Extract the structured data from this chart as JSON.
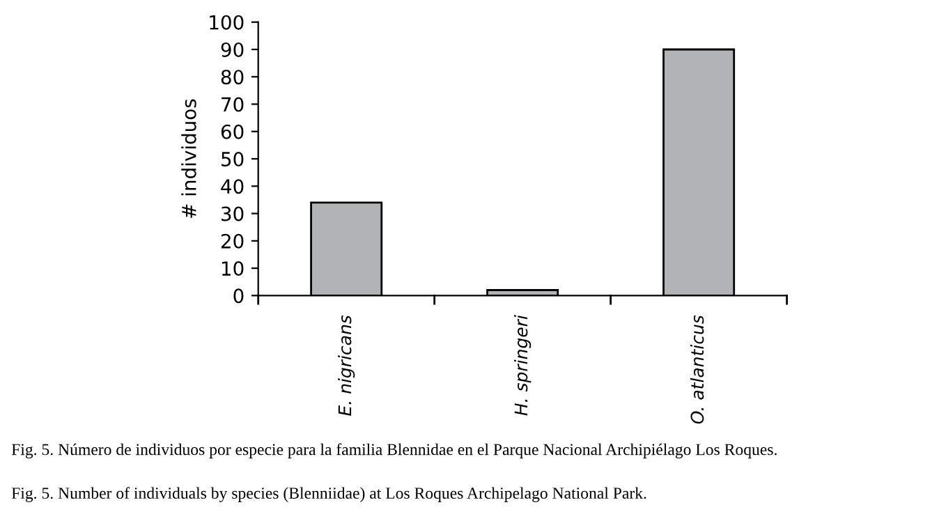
{
  "chart_data": {
    "type": "bar",
    "ylabel": "# individuos",
    "categories": [
      "E. nigricans",
      "H. springeri",
      "O. atlanticus"
    ],
    "values": [
      34,
      2,
      90
    ],
    "color": "#b2b3b7",
    "ylim": [
      0,
      100
    ],
    "yticks": [
      0,
      10,
      20,
      30,
      40,
      50,
      60,
      70,
      80,
      90,
      100
    ],
    "grid": false,
    "annotations": [
      "Fig. 5. Número de individuos por especie para la familia Blennidae en el Parque Nacional Archipiélago Los Roques.",
      "Fig. 5. Number of individuals by species (Blenniidae) at Los Roques Archipelago National Park."
    ]
  }
}
